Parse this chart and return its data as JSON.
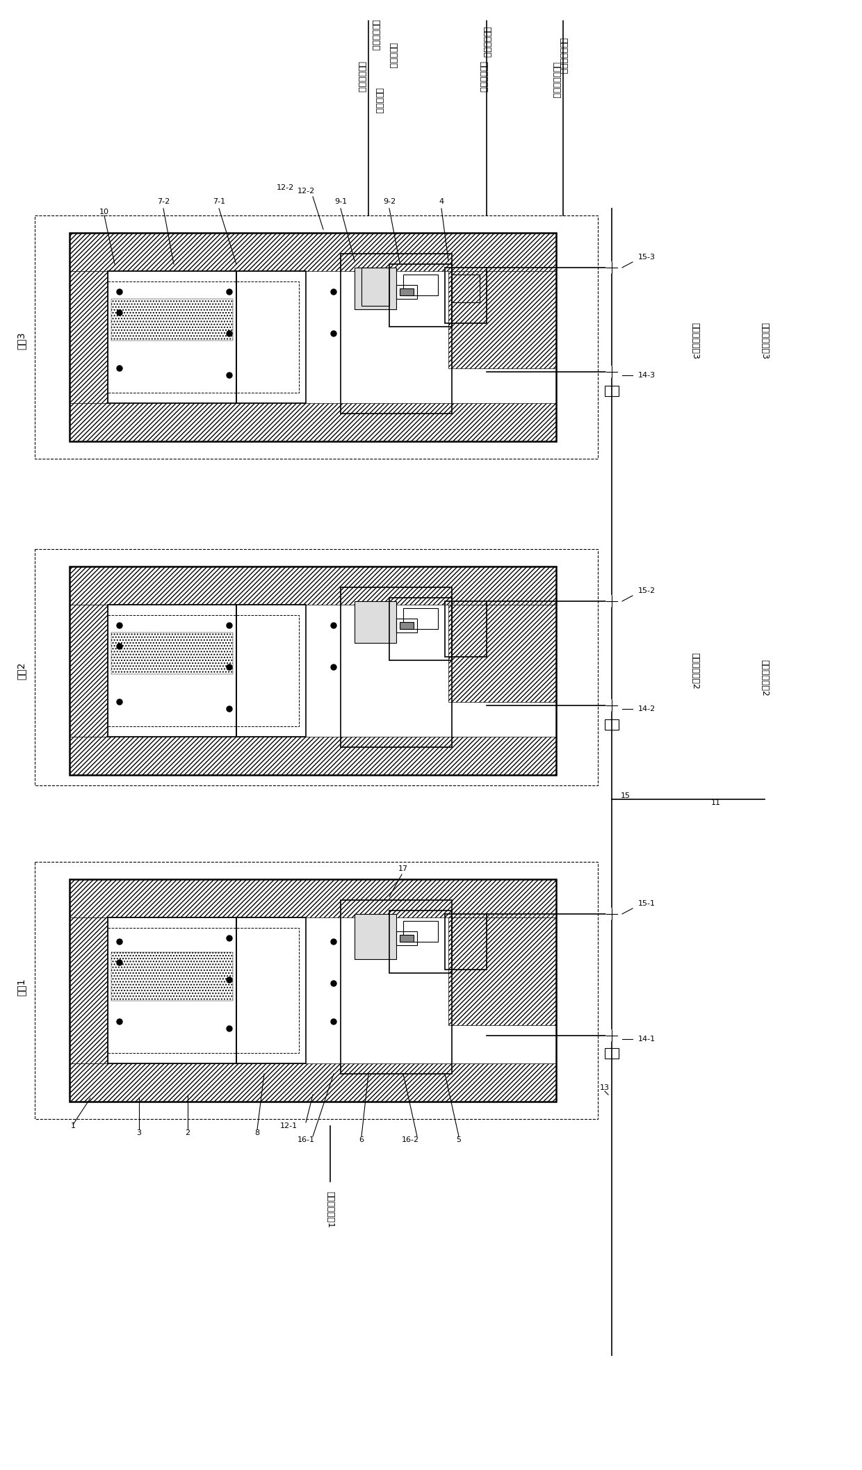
{
  "title": "",
  "bg_color": "#ffffff",
  "line_color": "#000000",
  "hatch_color": "#000000",
  "fig_width": 12.4,
  "fig_height": 21.15,
  "labels": {
    "module3": "模块3",
    "module2": "模块2",
    "module1": "模块1",
    "connect_atm": "连接至大气压",
    "connect_storage": "或下游储罐",
    "connect_confining": "连接至围压泵",
    "connect_permeation": "连接至渗透系统",
    "connect_axial3": "连接至轴压泵3",
    "connect_axial2": "连接至轴压泵2",
    "connect_axial1": "连接至轴压泵1",
    "pipe15": "15",
    "pipe11": "11"
  },
  "component_labels": [
    "10",
    "7-2",
    "7-1",
    "9-1",
    "9-2",
    "4",
    "12-2",
    "1",
    "2",
    "3",
    "5",
    "6",
    "8",
    "12-1",
    "13",
    "14-1",
    "14-2",
    "14-3",
    "15-1",
    "15-2",
    "15-3",
    "16-1",
    "16-2",
    "17"
  ]
}
